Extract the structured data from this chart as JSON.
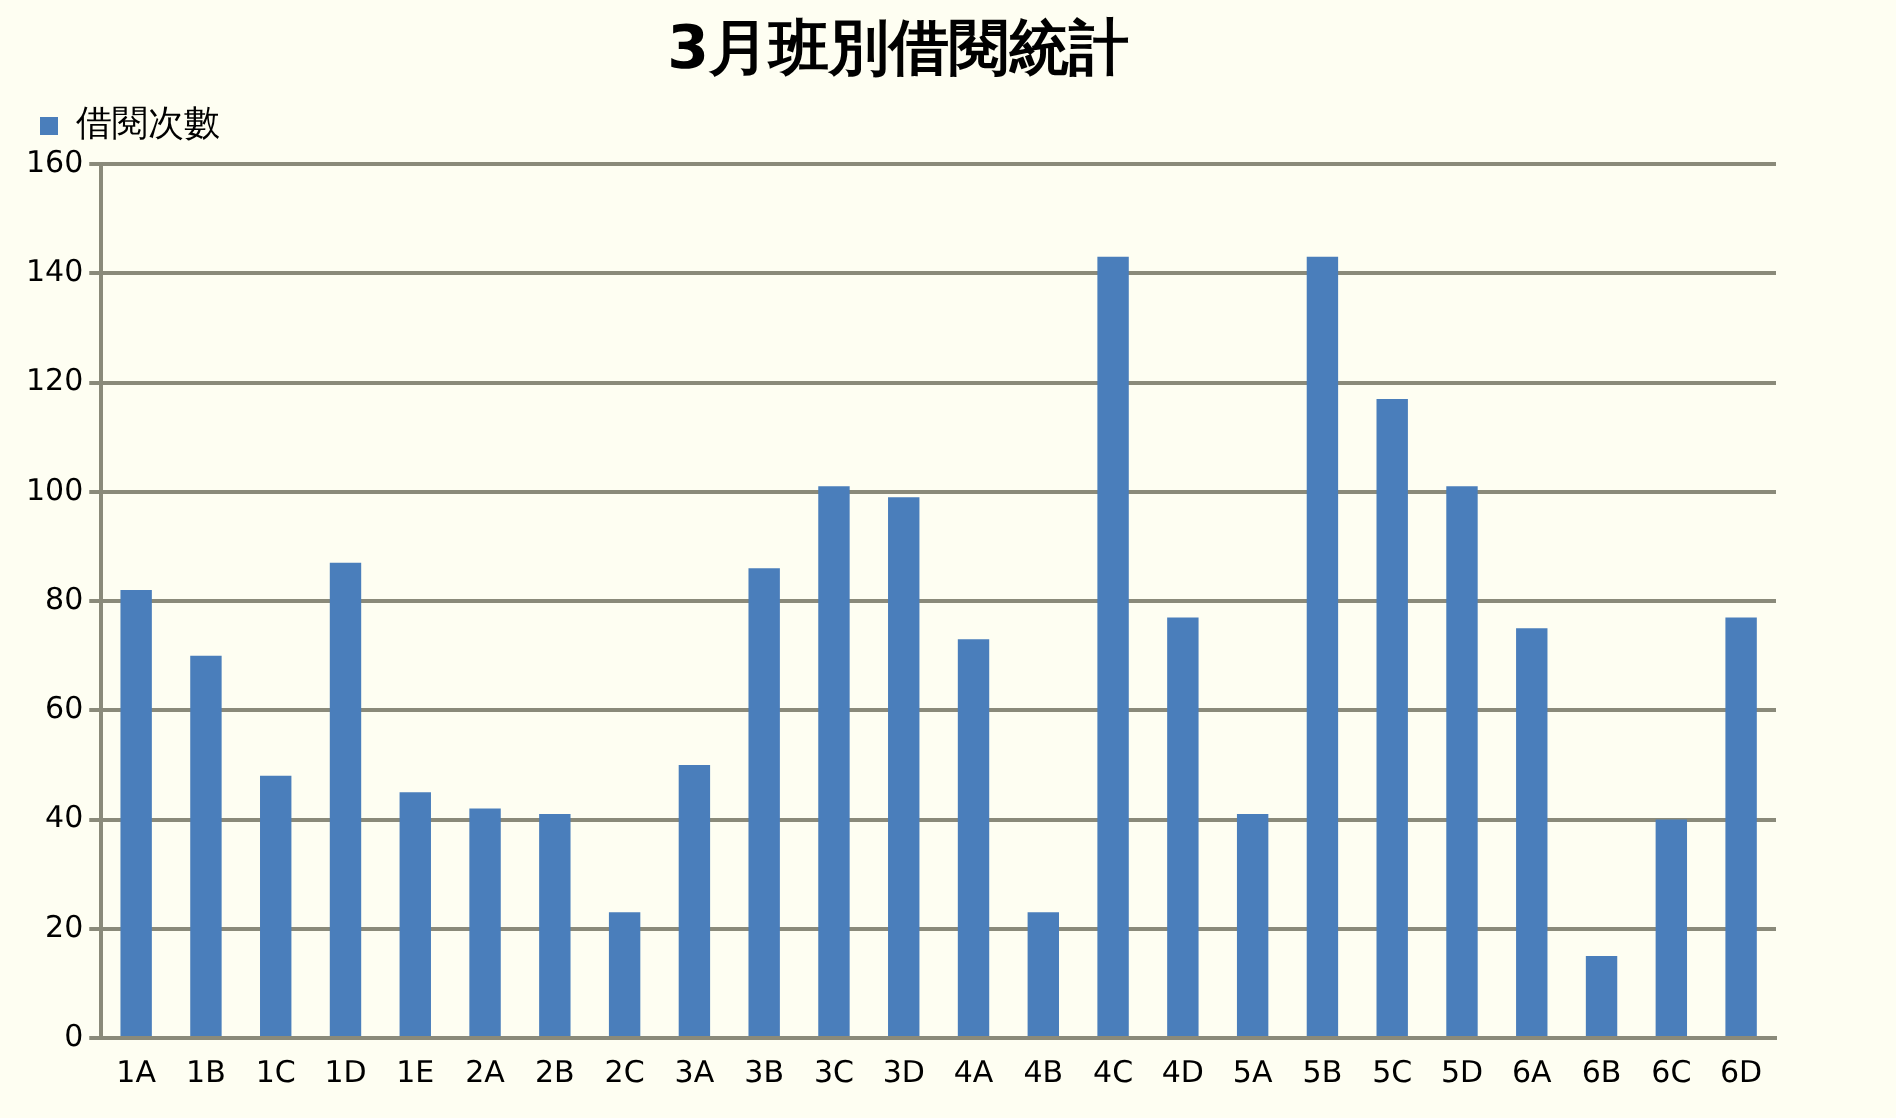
{
  "chart_data": {
    "type": "bar",
    "title": "3月班別借閱統計",
    "categories": [
      "1A",
      "1B",
      "1C",
      "1D",
      "1E",
      "2A",
      "2B",
      "2C",
      "3A",
      "3B",
      "3C",
      "3D",
      "4A",
      "4B",
      "4C",
      "4D",
      "5A",
      "5B",
      "5C",
      "5D",
      "6A",
      "6B",
      "6C",
      "6D"
    ],
    "series": [
      {
        "name": "借閱次數",
        "color": "#4a7ebb",
        "values": [
          82,
          70,
          48,
          87,
          45,
          42,
          41,
          23,
          50,
          86,
          101,
          99,
          73,
          23,
          143,
          77,
          41,
          143,
          117,
          101,
          75,
          15,
          40,
          77
        ]
      }
    ],
    "ylim": [
      0,
      160
    ],
    "yticks": [
      0,
      20,
      40,
      60,
      80,
      100,
      120,
      140,
      160
    ],
    "grid": "y",
    "legend": "top left"
  }
}
